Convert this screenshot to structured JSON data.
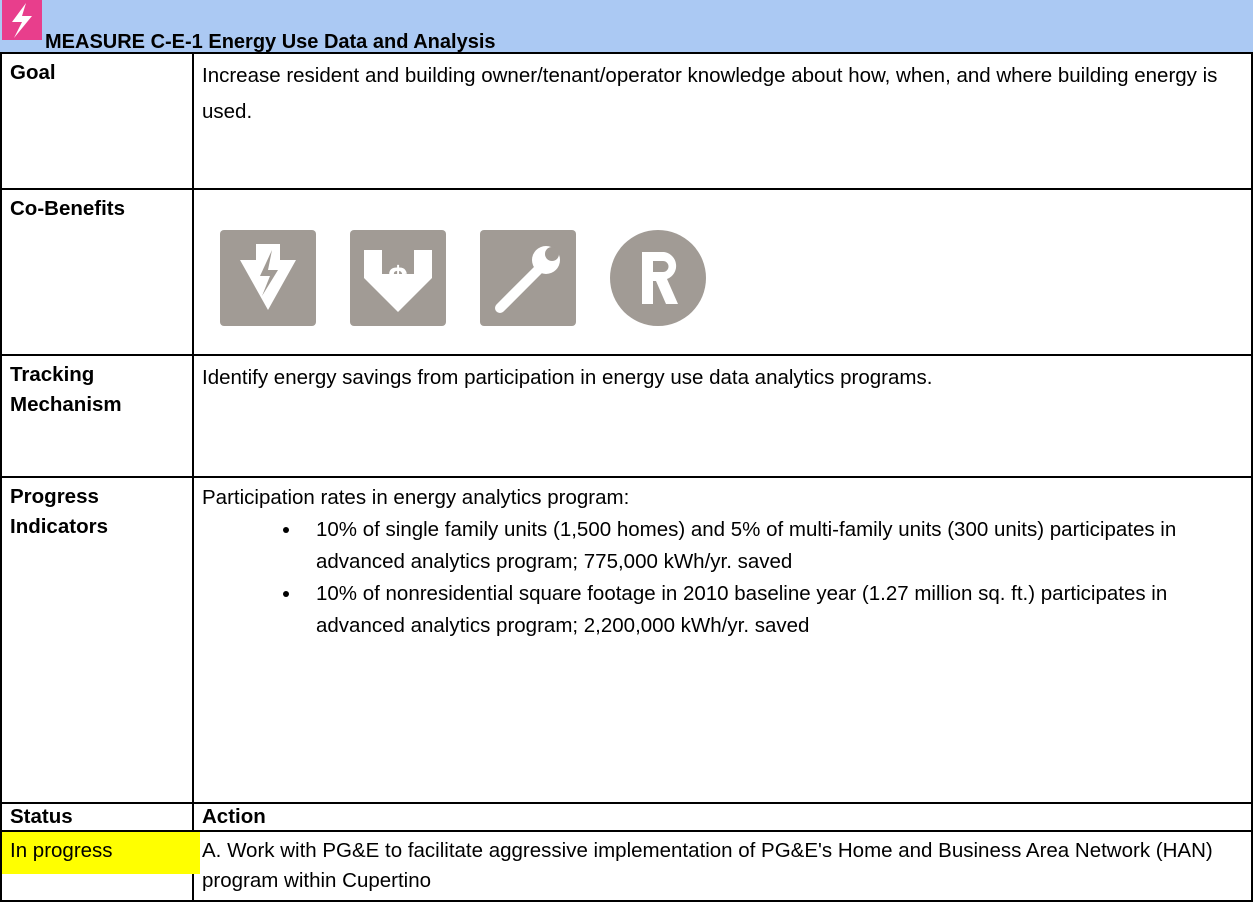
{
  "header": {
    "title": "MEASURE C-E-1  Energy Use Data and Analysis"
  },
  "rows": [
    {
      "label": "Goal",
      "text": "Increase resident and building owner/tenant/operator knowledge about how, when, and where building energy is used."
    },
    {
      "label": "Co-Benefits"
    },
    {
      "label": "Tracking Mechanism",
      "text": "Identify energy savings from participation in energy use data analytics programs."
    },
    {
      "label": "Progress Indicators",
      "text": "Participation rates in energy analytics program:",
      "bullets": [
        "10% of single family units (1,500 homes) and 5% of multi-family units (300 units) participates in advanced analytics program; 775,000 kWh/yr. saved",
        "10% of nonresidential square footage in 2010 baseline year (1.27 million sq. ft.) participates in advanced analytics program; 2,200,000 kWh/yr. saved"
      ]
    }
  ],
  "status_table": {
    "headers": [
      "Status",
      "Action"
    ],
    "rows": [
      [
        "In progress",
        "A. Work with PG&E to facilitate aggressive implementation of PG&E's Home and Business Area Network (HAN) program within Cupertino"
      ]
    ]
  }
}
